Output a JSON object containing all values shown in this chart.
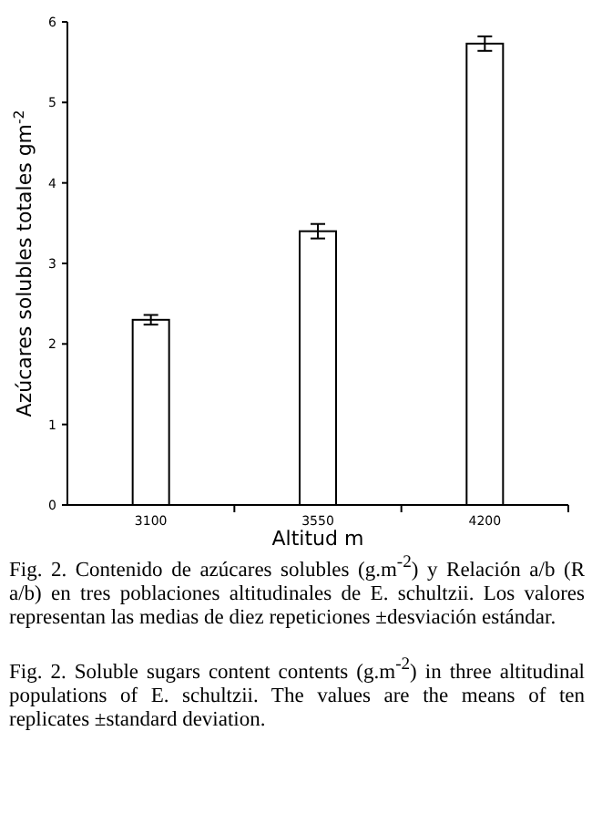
{
  "chart_data": {
    "type": "bar",
    "categories": [
      "3100",
      "3550",
      "4200"
    ],
    "values": [
      2.3,
      3.4,
      5.73
    ],
    "errors": [
      0.06,
      0.09,
      0.09
    ],
    "color": "#ffffff",
    "xlabel": "Altitud m",
    "ylabel": "Azúcares solubles totales gm$^{-2}$",
    "ylim": [
      0,
      6
    ],
    "yticks": [
      0,
      1,
      2,
      3,
      4,
      5,
      6
    ],
    "annotations": [
      "Fig. 2. Contenido de azúcares solubles (g.m$^{-2}$) y Relación a/b (R a/b) en tres poblaciones altitudinales de E. schultzii. Los valores representan las medias de diez repeticiones ±desviación estándar.",
      "Fig. 2. Soluble sugars content contents (g.m$^{-2}$) in three altitudinal populations of E. schultzii. The values are the means of ten replicates ±standard deviation."
    ]
  }
}
